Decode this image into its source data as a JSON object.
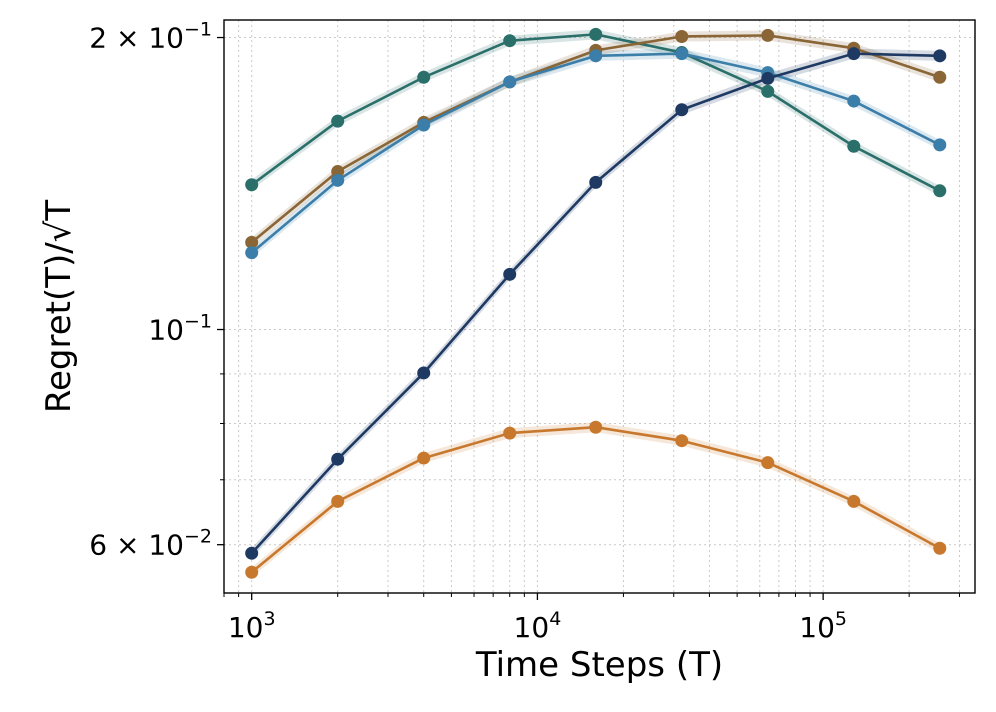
{
  "chart_data": {
    "type": "line",
    "title": "",
    "xlabel": "Time Steps (T)",
    "ylabel": "Regret(T)/√T",
    "xscale": "log",
    "yscale": "log",
    "xlim": [
      800,
      340000
    ],
    "ylim": [
      0.0535,
      0.2085
    ],
    "grid": true,
    "x": [
      1000,
      2000,
      4000,
      8000,
      16000,
      32000,
      64000,
      128000,
      256000
    ],
    "x_ticks": [
      {
        "value": 1000,
        "base": "10",
        "exp": "3"
      },
      {
        "value": 10000,
        "base": "10",
        "exp": "4"
      },
      {
        "value": 100000,
        "base": "10",
        "exp": "5"
      }
    ],
    "y_ticks": [
      {
        "value": 0.2,
        "mantissa": "2 × ",
        "base": "10",
        "exp": "−1"
      },
      {
        "value": 0.1,
        "mantissa": "",
        "base": "10",
        "exp": "−1"
      },
      {
        "value": 0.06,
        "mantissa": "6 × ",
        "base": "10",
        "exp": "−2"
      }
    ],
    "series": [
      {
        "name": "teal",
        "color": "#2a6f6a",
        "values": [
          0.141,
          0.164,
          0.182,
          0.1985,
          0.2015,
          0.193,
          0.176,
          0.1545,
          0.139
        ]
      },
      {
        "name": "brown",
        "color": "#8a6535",
        "values": [
          0.123,
          0.1455,
          0.1635,
          0.18,
          0.194,
          0.2005,
          0.201,
          0.195,
          0.182
        ]
      },
      {
        "name": "blue",
        "color": "#3a7ea9",
        "values": [
          0.12,
          0.1425,
          0.1625,
          0.18,
          0.1915,
          0.1925,
          0.184,
          0.172,
          0.155
        ]
      },
      {
        "name": "navy",
        "color": "#1e3a63",
        "values": [
          0.0588,
          0.0735,
          0.0902,
          0.114,
          0.1418,
          0.1685,
          0.1815,
          0.1925,
          0.1915
        ]
      },
      {
        "name": "orange",
        "color": "#c8782c",
        "values": [
          0.0562,
          0.0665,
          0.0737,
          0.0782,
          0.0793,
          0.0768,
          0.0729,
          0.0665,
          0.0595
        ]
      }
    ]
  }
}
